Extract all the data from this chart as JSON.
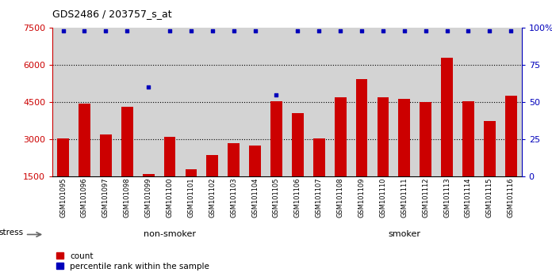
{
  "title": "GDS2486 / 203757_s_at",
  "samples": [
    "GSM101095",
    "GSM101096",
    "GSM101097",
    "GSM101098",
    "GSM101099",
    "GSM101100",
    "GSM101101",
    "GSM101102",
    "GSM101103",
    "GSM101104",
    "GSM101105",
    "GSM101106",
    "GSM101107",
    "GSM101108",
    "GSM101109",
    "GSM101110",
    "GSM101111",
    "GSM101112",
    "GSM101113",
    "GSM101114",
    "GSM101115",
    "GSM101116"
  ],
  "counts": [
    3050,
    4450,
    3200,
    4300,
    1600,
    3100,
    1800,
    2350,
    2850,
    2750,
    4550,
    4050,
    3050,
    4700,
    5450,
    4700,
    4650,
    4500,
    6300,
    4550,
    3750,
    4750
  ],
  "percentile_ranks": [
    98,
    98,
    98,
    98,
    60,
    98,
    98,
    98,
    98,
    98,
    55,
    98,
    98,
    98,
    98,
    98,
    98,
    98,
    98,
    98,
    98,
    98
  ],
  "groups": [
    {
      "label": "non-smoker",
      "start": 0,
      "end": 11,
      "color": "#90EE90"
    },
    {
      "label": "smoker",
      "start": 11,
      "end": 22,
      "color": "#00CC00"
    }
  ],
  "bar_color": "#CC0000",
  "dot_color": "#0000BB",
  "ylim_left": [
    1500,
    7500
  ],
  "ylim_right": [
    0,
    100
  ],
  "yticks_left": [
    1500,
    3000,
    4500,
    6000,
    7500
  ],
  "ytick_labels_left": [
    "1500",
    "3000",
    "4500",
    "6000",
    "7500"
  ],
  "yticks_right": [
    0,
    25,
    50,
    75,
    100
  ],
  "ytick_labels_right": [
    "0",
    "25",
    "50",
    "75",
    "100%"
  ],
  "grid_lines": [
    3000,
    4500,
    6000
  ],
  "stress_label": "stress",
  "legend_count_label": "count",
  "legend_pct_label": "percentile rank within the sample",
  "plot_bg_color": "#D3D3D3",
  "tick_bg_color": "#C8C8C8"
}
